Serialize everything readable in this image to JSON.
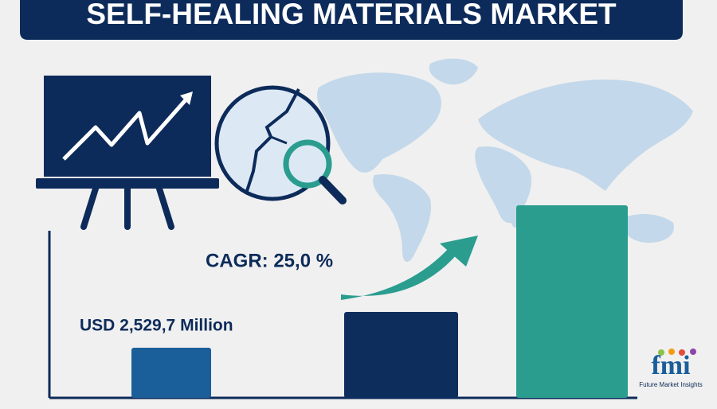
{
  "header": {
    "title": "SELF-HEALING MATERIALS MARKET"
  },
  "callouts": {
    "cagr": "CAGR: 25,0 %",
    "market_value": "USD 2,529,7 Million"
  },
  "logo": {
    "mark": "fmi",
    "name": "Future Market Insights"
  }
}
